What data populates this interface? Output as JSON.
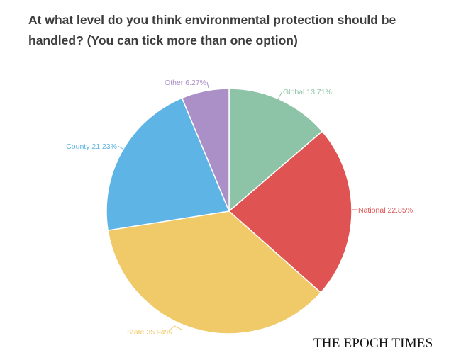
{
  "chart_data": {
    "type": "pie",
    "title": "At what level do you think environmental protection should be handled? (You can tick more than one option)",
    "slices": [
      {
        "label": "Global",
        "value": 13.71,
        "display": "Global 13.71%",
        "color": "#8dc3a7"
      },
      {
        "label": "National",
        "value": 22.85,
        "display": "National 22.85%",
        "color": "#df5353"
      },
      {
        "label": "State",
        "value": 35.94,
        "display": "State 35.94%",
        "color": "#f0ca69"
      },
      {
        "label": "County",
        "value": 21.23,
        "display": "County 21.23%",
        "color": "#5db4e5"
      },
      {
        "label": "Other",
        "value": 6.27,
        "display": "Other 6.27%",
        "color": "#ab8fc7"
      }
    ],
    "start": "12 o'clock, clockwise",
    "legend": "none (labels on slices)"
  },
  "branding": {
    "logo_text": "THE EPOCH TIMES"
  }
}
